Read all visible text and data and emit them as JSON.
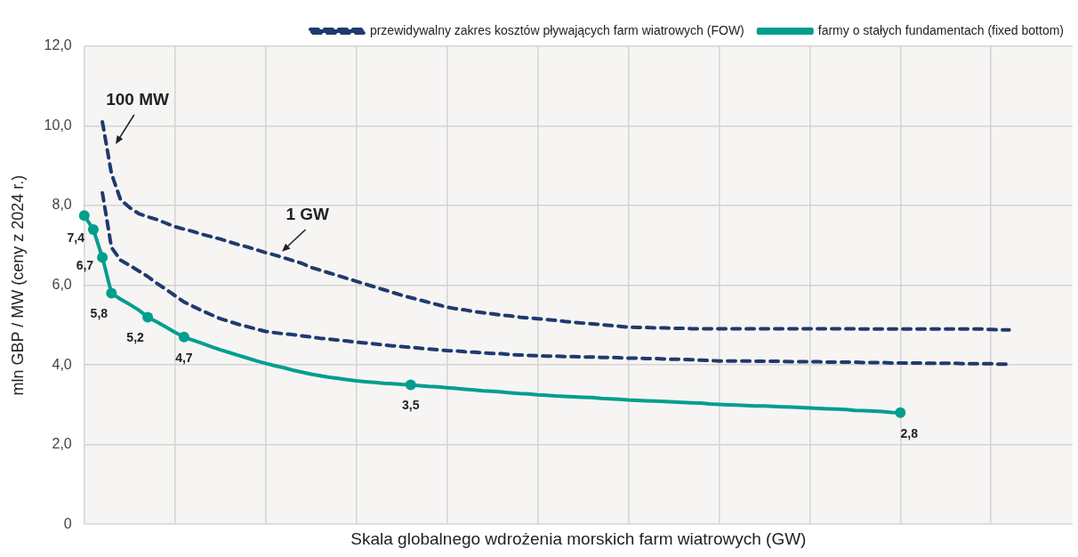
{
  "chart_data": {
    "type": "line",
    "xlabel": "Skala globalnego wdrożenia morskich farm wiatrowych (GW)",
    "ylabel": "mln GBP / MW (ceny z 2024 r.)",
    "categories": [
      null,
      null,
      null,
      null,
      null,
      null,
      null,
      null,
      null,
      null,
      null,
      null,
      null,
      null,
      null,
      null,
      null,
      null,
      null,
      null,
      null,
      null,
      null,
      null,
      null,
      null,
      null,
      null,
      null,
      null,
      null,
      null,
      null,
      null,
      null,
      null,
      null,
      null,
      null,
      null,
      null,
      null,
      null,
      null,
      null,
      null,
      null,
      null,
      null,
      null,
      null,
      null,
      null,
      null,
      null,
      null,
      null,
      null,
      null,
      null,
      null,
      null,
      null,
      null,
      null,
      null,
      null,
      null,
      null,
      null,
      null,
      null,
      null,
      null,
      null,
      null,
      null,
      null,
      null,
      null,
      null,
      null,
      null,
      null,
      null,
      null,
      null,
      null,
      null,
      null,
      null,
      null,
      null,
      null,
      null,
      null,
      null,
      null,
      null,
      null,
      null,
      null,
      null,
      null,
      null,
      null,
      null,
      null,
      null,
      null
    ],
    "ylim": [
      0,
      12
    ],
    "yticks": [
      {
        "value": 0,
        "label": "0"
      },
      {
        "value": 2,
        "label": "2,0"
      },
      {
        "value": 4,
        "label": "4,0"
      },
      {
        "value": 6,
        "label": "6,0"
      },
      {
        "value": 8,
        "label": "8,0"
      },
      {
        "value": 10,
        "label": "10,0"
      },
      {
        "value": 12,
        "label": "12,0"
      }
    ],
    "tick_labels": "y",
    "grid": true,
    "legend": "top right",
    "series": [
      {
        "name": "przewidywalny zakres kosztów pływających farm wiatrowych (FOW)",
        "color": "#1f3a6e",
        "line_style": "dashed",
        "marker": "none",
        "values": [
          null,
          null,
          10.1,
          8.8,
          8.15,
          7.95,
          7.8,
          7.72,
          7.65,
          7.56,
          7.47,
          7.41,
          7.35,
          7.28,
          7.22,
          7.16,
          7.09,
          7.02,
          6.96,
          6.89,
          6.82,
          6.76,
          6.69,
          6.62,
          6.55,
          6.45,
          6.38,
          6.31,
          6.24,
          6.17,
          6.1,
          6.03,
          5.96,
          5.89,
          5.82,
          5.75,
          5.69,
          5.63,
          5.57,
          5.51,
          5.45,
          5.41,
          5.38,
          5.34,
          5.31,
          5.28,
          5.25,
          5.23,
          5.2,
          5.18,
          5.16,
          5.14,
          5.12,
          5.09,
          5.07,
          5.05,
          5.03,
          5.01,
          4.99,
          4.97,
          4.95,
          4.94,
          4.94,
          4.93,
          4.93,
          4.92,
          4.92,
          4.91,
          4.91,
          4.91,
          4.91,
          4.91,
          4.91,
          4.91,
          4.91,
          4.91,
          4.91,
          4.91,
          4.91,
          4.91,
          4.91,
          4.91,
          4.91,
          4.91,
          4.91,
          4.91,
          4.9,
          4.9,
          4.9,
          4.9,
          4.9,
          4.9,
          4.9,
          4.9,
          4.9,
          4.9,
          4.9,
          4.9,
          4.9,
          4.9,
          4.89,
          4.88,
          4.88,
          null,
          null,
          null,
          null,
          null,
          null,
          null
        ]
      },
      {
        "color": "#1f3a6e",
        "line_style": "dashed",
        "marker": "none",
        "values": [
          null,
          null,
          8.32,
          6.95,
          6.63,
          6.5,
          6.36,
          6.22,
          6.05,
          5.9,
          5.74,
          5.58,
          5.47,
          5.36,
          5.26,
          5.16,
          5.09,
          5.02,
          4.96,
          4.9,
          4.84,
          4.81,
          4.78,
          4.76,
          4.73,
          4.7,
          4.67,
          4.65,
          4.62,
          4.6,
          4.57,
          4.55,
          4.53,
          4.5,
          4.48,
          4.46,
          4.44,
          4.42,
          4.4,
          4.38,
          4.36,
          4.35,
          4.33,
          4.32,
          4.3,
          4.29,
          4.28,
          4.26,
          4.25,
          4.24,
          4.23,
          4.22,
          4.22,
          4.21,
          4.21,
          4.2,
          4.2,
          4.19,
          4.19,
          4.18,
          4.17,
          4.17,
          4.16,
          4.16,
          4.15,
          4.14,
          4.14,
          4.13,
          4.12,
          4.11,
          4.1,
          4.1,
          4.1,
          4.1,
          4.09,
          4.09,
          4.09,
          4.09,
          4.08,
          4.08,
          4.08,
          4.08,
          4.07,
          4.07,
          4.07,
          4.07,
          4.06,
          4.06,
          4.06,
          4.05,
          4.05,
          4.05,
          4.05,
          4.04,
          4.04,
          4.04,
          4.04,
          4.03,
          4.03,
          4.03,
          4.03,
          4.02,
          4.02,
          null,
          null,
          null,
          null,
          null,
          null,
          null
        ]
      },
      {
        "color": "#009e8f",
        "line_style": "solid",
        "marker": "none",
        "values": [
          7.75,
          7.4,
          6.7,
          5.8,
          5.65,
          5.52,
          5.38,
          5.2,
          5.08,
          4.95,
          4.82,
          4.7,
          4.62,
          4.54,
          4.46,
          4.38,
          4.31,
          4.24,
          4.17,
          4.1,
          4.04,
          3.98,
          3.93,
          3.87,
          3.82,
          3.77,
          3.73,
          3.69,
          3.66,
          3.63,
          3.6,
          3.58,
          3.56,
          3.54,
          3.53,
          3.51,
          3.5,
          3.48,
          3.46,
          3.45,
          3.43,
          3.41,
          3.39,
          3.37,
          3.35,
          3.34,
          3.32,
          3.3,
          3.28,
          3.27,
          3.25,
          3.24,
          3.22,
          3.21,
          3.2,
          3.19,
          3.18,
          3.16,
          3.15,
          3.14,
          3.12,
          3.11,
          3.1,
          3.09,
          3.08,
          3.07,
          3.06,
          3.05,
          3.04,
          3.02,
          3.01,
          3,
          2.99,
          2.98,
          2.97,
          2.97,
          2.96,
          2.95,
          2.94,
          2.93,
          2.92,
          2.91,
          2.9,
          2.89,
          2.88,
          2.86,
          2.85,
          2.84,
          2.83,
          2.81,
          2.8,
          null,
          null,
          null,
          null,
          null,
          null,
          null,
          null,
          null,
          null,
          null,
          null,
          null,
          null,
          null,
          null,
          null,
          null,
          null
        ]
      },
      {
        "type": "scatter",
        "name": "farmy o stałych fundamentach (fixed bottom)",
        "color": "#009e8f",
        "marker": "circle",
        "values": [
          7.75,
          7.4,
          6.7,
          5.8,
          null,
          null,
          null,
          5.2,
          null,
          null,
          null,
          4.7,
          null,
          null,
          null,
          null,
          null,
          null,
          null,
          null,
          null,
          null,
          null,
          null,
          null,
          null,
          null,
          null,
          null,
          null,
          null,
          null,
          null,
          null,
          null,
          null,
          3.5,
          null,
          null,
          null,
          null,
          null,
          null,
          null,
          null,
          null,
          null,
          null,
          null,
          null,
          null,
          null,
          null,
          null,
          null,
          null,
          null,
          null,
          null,
          null,
          null,
          null,
          null,
          null,
          null,
          null,
          null,
          null,
          null,
          null,
          null,
          null,
          null,
          null,
          null,
          null,
          null,
          null,
          null,
          null,
          null,
          null,
          null,
          null,
          null,
          null,
          null,
          null,
          null,
          null,
          2.8,
          null,
          null,
          null,
          null,
          null,
          null,
          null,
          null,
          null,
          null,
          null,
          null,
          null,
          null,
          null,
          null,
          null,
          null,
          null
        ],
        "value_labels": [
          null,
          "7,4",
          "6,7",
          "5,8",
          null,
          null,
          null,
          "5,2",
          null,
          null,
          null,
          "4,7",
          null,
          null,
          null,
          null,
          null,
          null,
          null,
          null,
          null,
          null,
          null,
          null,
          null,
          null,
          null,
          null,
          null,
          null,
          null,
          null,
          null,
          null,
          null,
          null,
          "3,5",
          null,
          null,
          null,
          null,
          null,
          null,
          null,
          null,
          null,
          null,
          null,
          null,
          null,
          null,
          null,
          null,
          null,
          null,
          null,
          null,
          null,
          null,
          null,
          null,
          null,
          null,
          null,
          null,
          null,
          null,
          null,
          null,
          null,
          null,
          null,
          null,
          null,
          null,
          null,
          null,
          null,
          null,
          null,
          null,
          null,
          null,
          null,
          null,
          null,
          null,
          null,
          null,
          null,
          "2,8",
          null,
          null,
          null,
          null,
          null,
          null,
          null,
          null,
          null,
          null,
          null,
          null,
          null,
          null,
          null,
          null,
          null,
          null,
          null
        ]
      }
    ],
    "annotations": [
      "100 MW",
      "1 GW"
    ]
  }
}
